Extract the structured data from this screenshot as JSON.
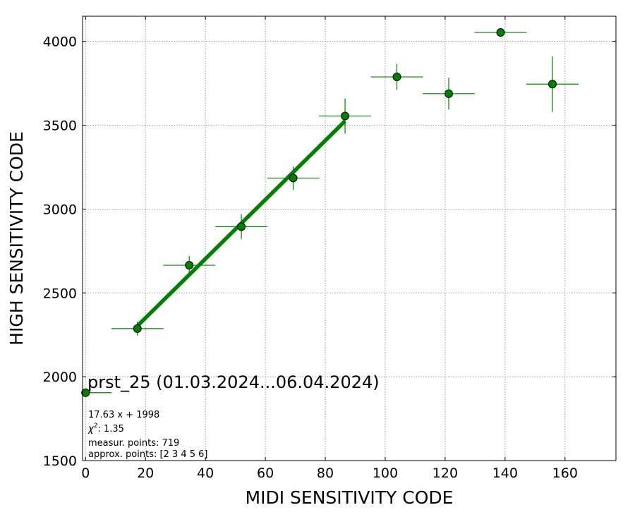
{
  "chart_data": {
    "type": "scatter",
    "xlabel": "MIDI SENSITIVITY CODE",
    "ylabel": "HIGH SENSITIVITY CODE",
    "xlim": [
      -1,
      177
    ],
    "ylim": [
      1500,
      4150
    ],
    "xticks": [
      0,
      20,
      40,
      60,
      80,
      100,
      120,
      140,
      160
    ],
    "yticks": [
      1500,
      2000,
      2500,
      3000,
      3500,
      4000
    ],
    "grid": true,
    "points": [
      {
        "x": 0,
        "y": 1905,
        "xerr": 8.7,
        "yerr": 0
      },
      {
        "x": 17.3,
        "y": 2287,
        "xerr": 8.7,
        "yerr": 42
      },
      {
        "x": 34.6,
        "y": 2665,
        "xerr": 8.7,
        "yerr": 55
      },
      {
        "x": 52.0,
        "y": 2895,
        "xerr": 8.7,
        "yerr": 75
      },
      {
        "x": 69.3,
        "y": 3185,
        "xerr": 8.7,
        "yerr": 70
      },
      {
        "x": 86.6,
        "y": 3555,
        "xerr": 8.7,
        "yerr": 105
      },
      {
        "x": 103.9,
        "y": 3788,
        "xerr": 8.7,
        "yerr": 78
      },
      {
        "x": 121.2,
        "y": 3688,
        "xerr": 8.7,
        "yerr": 95
      },
      {
        "x": 138.5,
        "y": 4053,
        "xerr": 8.7,
        "yerr": 20
      },
      {
        "x": 155.8,
        "y": 3745,
        "xerr": 8.7,
        "yerr": 165
      }
    ],
    "fit": {
      "slope": 17.63,
      "intercept": 1998,
      "x_from": 17.3,
      "x_to": 86.6
    },
    "annotation": {
      "title": "prst_25 (01.03.2024...06.04.2024)",
      "equation": "17.63 x + 1998",
      "chi2": "1.35",
      "measur_points": "measur. points: 719",
      "approx_points": "approx. points: [2 3 4 5 6]"
    },
    "colors": {
      "marker": "#008000",
      "marker_edge": "#000000",
      "errorbar": "#008000",
      "fit_line": "#008000",
      "grid": "#808080"
    }
  }
}
